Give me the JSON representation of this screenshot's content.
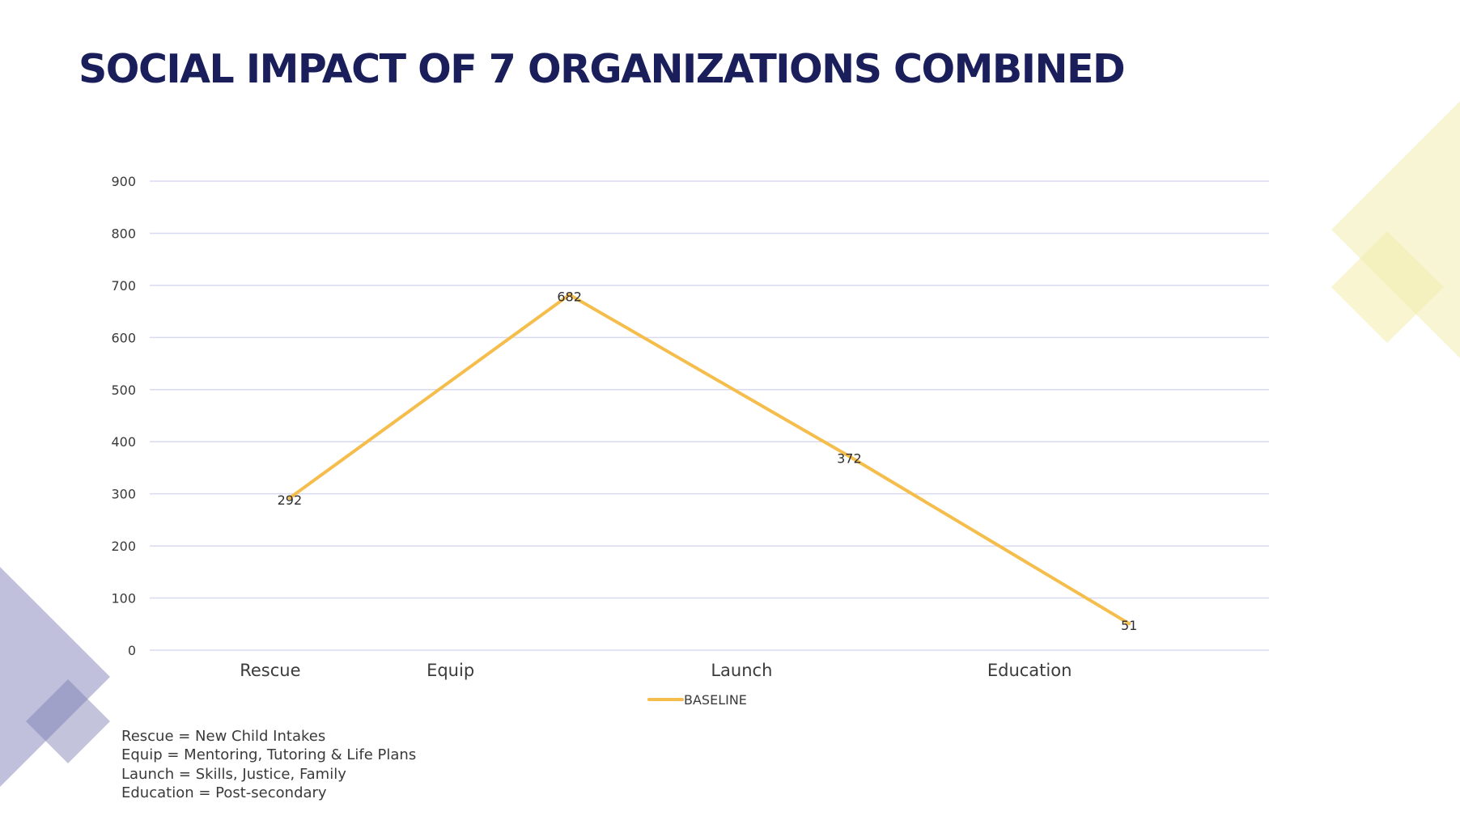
{
  "title": "SOCIAL IMPACT OF 7 ORGANIZATIONS COMBINED",
  "colors": {
    "title": "#1a1f5c",
    "series_line": "#f5be4c",
    "gridline": "#d8daf0",
    "deco_purple": "#c0c0dc",
    "deco_purple_overlap": "#9697c0",
    "deco_yellow": "#f8f4d2",
    "deco_yellow_overlap": "#f3eeb1"
  },
  "chart_data": {
    "type": "line",
    "title": "SOCIAL IMPACT OF 7 ORGANIZATIONS COMBINED",
    "xlabel": "",
    "ylabel": "",
    "categories": [
      "Rescue",
      "Equip",
      "Launch",
      "Education"
    ],
    "series": [
      {
        "name": "BASELINE",
        "values": [
          292,
          682,
          372,
          51
        ],
        "color": "#f5be4c"
      }
    ],
    "ylim": [
      0,
      900
    ],
    "yticks": [
      0,
      100,
      200,
      300,
      400,
      500,
      600,
      700,
      800,
      900
    ],
    "grid": true,
    "data_labels": true,
    "legend": {
      "position": "bottom-center",
      "entries": [
        "BASELINE"
      ]
    }
  },
  "notes": [
    "Rescue = New Child Intakes",
    "Equip = Mentoring, Tutoring & Life Plans",
    "Launch = Skills, Justice, Family",
    "Education = Post-secondary"
  ]
}
